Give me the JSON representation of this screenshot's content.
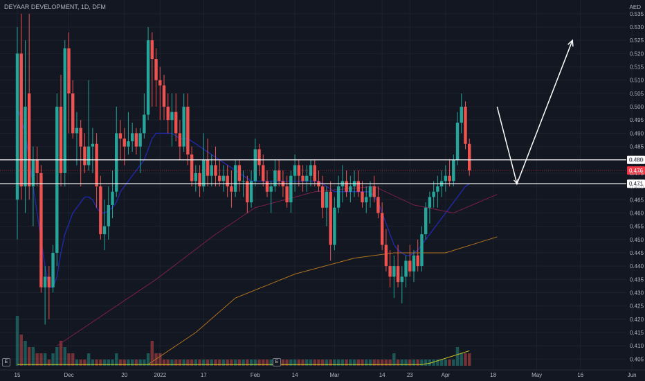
{
  "header": {
    "title": "DEYAAR DEVELOPMENT, 1D, DFM",
    "currency": "AED"
  },
  "colors": {
    "background": "#131722",
    "grid": "#1e222d",
    "up": "#26a69a",
    "down": "#ef5350",
    "ema_short": "#2028a8",
    "ema_mid": "#7b1f4a",
    "ema_long": "#b0741f",
    "volume_ma": "#c8c820",
    "level_line": "#ffffff",
    "price_label": "#f23645"
  },
  "badges": [
    "E",
    "E"
  ],
  "chart_data": {
    "type": "candlestick",
    "title": "DEYAAR DEVELOPMENT, 1D, DFM",
    "ylabel": "AED",
    "ylim": [
      0.403,
      0.536
    ],
    "yticks": [
      0.405,
      0.41,
      0.415,
      0.42,
      0.425,
      0.43,
      0.435,
      0.44,
      0.445,
      0.45,
      0.455,
      0.46,
      0.465,
      0.47,
      0.475,
      0.48,
      0.485,
      0.49,
      0.495,
      0.5,
      0.505,
      0.51,
      0.515,
      0.52,
      0.525,
      0.53,
      0.535
    ],
    "x_labels": [
      {
        "label": "15",
        "bar": 0
      },
      {
        "label": "Dec",
        "bar": 13
      },
      {
        "label": "20",
        "bar": 27
      },
      {
        "label": "2022",
        "bar": 36
      },
      {
        "label": "17",
        "bar": 47
      },
      {
        "label": "Feb",
        "bar": 60
      },
      {
        "label": "14",
        "bar": 70
      },
      {
        "label": "Mar",
        "bar": 80
      },
      {
        "label": "14",
        "bar": 92
      },
      {
        "label": "23",
        "bar": 99
      },
      {
        "label": "Apr",
        "bar": 108
      },
      {
        "label": "18",
        "bar": 120
      },
      {
        "label": "May",
        "bar": 131
      },
      {
        "label": "16",
        "bar": 142
      },
      {
        "label": "Jun",
        "bar": 155
      }
    ],
    "candles": [
      [
        0.465,
        0.53,
        0.45,
        0.52
      ],
      [
        0.52,
        0.535,
        0.465,
        0.47
      ],
      [
        0.47,
        0.525,
        0.46,
        0.5
      ],
      [
        0.505,
        0.535,
        0.465,
        0.47
      ],
      [
        0.47,
        0.485,
        0.455,
        0.48
      ],
      [
        0.48,
        0.485,
        0.47,
        0.475
      ],
      [
        0.475,
        0.478,
        0.43,
        0.432
      ],
      [
        0.432,
        0.44,
        0.418,
        0.436
      ],
      [
        0.436,
        0.44,
        0.42,
        0.432
      ],
      [
        0.432,
        0.448,
        0.43,
        0.445
      ],
      [
        0.445,
        0.505,
        0.44,
        0.5
      ],
      [
        0.5,
        0.512,
        0.47,
        0.475
      ],
      [
        0.475,
        0.525,
        0.47,
        0.522
      ],
      [
        0.522,
        0.528,
        0.49,
        0.505
      ],
      [
        0.505,
        0.51,
        0.488,
        0.49
      ],
      [
        0.49,
        0.498,
        0.478,
        0.492
      ],
      [
        0.492,
        0.495,
        0.47,
        0.485
      ],
      [
        0.485,
        0.49,
        0.475,
        0.478
      ],
      [
        0.478,
        0.51,
        0.476,
        0.485
      ],
      [
        0.485,
        0.492,
        0.475,
        0.486
      ],
      [
        0.486,
        0.49,
        0.462,
        0.47
      ],
      [
        0.47,
        0.474,
        0.45,
        0.452
      ],
      [
        0.452,
        0.465,
        0.446,
        0.455
      ],
      [
        0.455,
        0.47,
        0.45,
        0.463
      ],
      [
        0.463,
        0.476,
        0.458,
        0.468
      ],
      [
        0.468,
        0.5,
        0.466,
        0.49
      ],
      [
        0.49,
        0.495,
        0.48,
        0.488
      ],
      [
        0.488,
        0.492,
        0.478,
        0.485
      ],
      [
        0.485,
        0.498,
        0.482,
        0.487
      ],
      [
        0.487,
        0.494,
        0.483,
        0.49
      ],
      [
        0.49,
        0.492,
        0.482,
        0.485
      ],
      [
        0.485,
        0.492,
        0.475,
        0.49
      ],
      [
        0.49,
        0.505,
        0.488,
        0.497
      ],
      [
        0.497,
        0.53,
        0.495,
        0.525
      ],
      [
        0.525,
        0.528,
        0.5,
        0.518
      ],
      [
        0.518,
        0.522,
        0.5,
        0.51
      ],
      [
        0.51,
        0.515,
        0.495,
        0.508
      ],
      [
        0.508,
        0.512,
        0.495,
        0.5
      ],
      [
        0.5,
        0.505,
        0.49,
        0.495
      ],
      [
        0.495,
        0.505,
        0.485,
        0.498
      ],
      [
        0.498,
        0.505,
        0.487,
        0.49
      ],
      [
        0.49,
        0.495,
        0.48,
        0.485
      ],
      [
        0.485,
        0.505,
        0.483,
        0.5
      ],
      [
        0.5,
        0.505,
        0.478,
        0.482
      ],
      [
        0.482,
        0.485,
        0.47,
        0.472
      ],
      [
        0.472,
        0.478,
        0.468,
        0.475
      ],
      [
        0.475,
        0.478,
        0.466,
        0.47
      ],
      [
        0.47,
        0.49,
        0.468,
        0.48
      ],
      [
        0.48,
        0.488,
        0.47,
        0.474
      ],
      [
        0.474,
        0.482,
        0.47,
        0.478
      ],
      [
        0.478,
        0.485,
        0.47,
        0.474
      ],
      [
        0.474,
        0.48,
        0.47,
        0.472
      ],
      [
        0.472,
        0.478,
        0.468,
        0.474
      ],
      [
        0.474,
        0.478,
        0.466,
        0.47
      ],
      [
        0.47,
        0.476,
        0.462,
        0.468
      ],
      [
        0.468,
        0.48,
        0.466,
        0.478
      ],
      [
        0.478,
        0.48,
        0.468,
        0.472
      ],
      [
        0.472,
        0.476,
        0.466,
        0.472
      ],
      [
        0.472,
        0.474,
        0.46,
        0.464
      ],
      [
        0.464,
        0.476,
        0.462,
        0.472
      ],
      [
        0.472,
        0.488,
        0.47,
        0.484
      ],
      [
        0.484,
        0.486,
        0.474,
        0.478
      ],
      [
        0.478,
        0.482,
        0.47,
        0.472
      ],
      [
        0.472,
        0.476,
        0.466,
        0.468
      ],
      [
        0.468,
        0.472,
        0.46,
        0.47
      ],
      [
        0.47,
        0.48,
        0.468,
        0.476
      ],
      [
        0.476,
        0.48,
        0.47,
        0.472
      ],
      [
        0.472,
        0.476,
        0.466,
        0.47
      ],
      [
        0.47,
        0.474,
        0.462,
        0.464
      ],
      [
        0.464,
        0.476,
        0.46,
        0.474
      ],
      [
        0.474,
        0.482,
        0.468,
        0.478
      ],
      [
        0.478,
        0.48,
        0.47,
        0.474
      ],
      [
        0.474,
        0.478,
        0.468,
        0.472
      ],
      [
        0.472,
        0.478,
        0.468,
        0.474
      ],
      [
        0.474,
        0.48,
        0.47,
        0.478
      ],
      [
        0.478,
        0.48,
        0.47,
        0.472
      ],
      [
        0.472,
        0.476,
        0.468,
        0.47
      ],
      [
        0.47,
        0.474,
        0.458,
        0.462
      ],
      [
        0.462,
        0.47,
        0.455,
        0.468
      ],
      [
        0.468,
        0.472,
        0.442,
        0.448
      ],
      [
        0.448,
        0.466,
        0.446,
        0.462
      ],
      [
        0.462,
        0.474,
        0.46,
        0.47
      ],
      [
        0.47,
        0.478,
        0.464,
        0.472
      ],
      [
        0.472,
        0.476,
        0.466,
        0.468
      ],
      [
        0.468,
        0.474,
        0.464,
        0.47
      ],
      [
        0.47,
        0.476,
        0.466,
        0.472
      ],
      [
        0.472,
        0.476,
        0.466,
        0.468
      ],
      [
        0.468,
        0.472,
        0.462,
        0.464
      ],
      [
        0.464,
        0.47,
        0.46,
        0.466
      ],
      [
        0.466,
        0.472,
        0.462,
        0.47
      ],
      [
        0.47,
        0.474,
        0.464,
        0.466
      ],
      [
        0.466,
        0.47,
        0.458,
        0.46
      ],
      [
        0.46,
        0.464,
        0.446,
        0.448
      ],
      [
        0.448,
        0.454,
        0.438,
        0.44
      ],
      [
        0.44,
        0.446,
        0.432,
        0.436
      ],
      [
        0.436,
        0.444,
        0.428,
        0.44
      ],
      [
        0.44,
        0.448,
        0.432,
        0.434
      ],
      [
        0.434,
        0.44,
        0.426,
        0.436
      ],
      [
        0.436,
        0.444,
        0.432,
        0.442
      ],
      [
        0.442,
        0.448,
        0.436,
        0.438
      ],
      [
        0.438,
        0.446,
        0.434,
        0.444
      ],
      [
        0.444,
        0.45,
        0.438,
        0.44
      ],
      [
        0.44,
        0.455,
        0.438,
        0.452
      ],
      [
        0.452,
        0.464,
        0.45,
        0.462
      ],
      [
        0.462,
        0.468,
        0.456,
        0.466
      ],
      [
        0.466,
        0.472,
        0.462,
        0.468
      ],
      [
        0.468,
        0.474,
        0.462,
        0.47
      ],
      [
        0.47,
        0.476,
        0.466,
        0.472
      ],
      [
        0.472,
        0.478,
        0.468,
        0.474
      ],
      [
        0.474,
        0.48,
        0.47,
        0.472
      ],
      [
        0.472,
        0.482,
        0.47,
        0.48
      ],
      [
        0.48,
        0.498,
        0.478,
        0.494
      ],
      [
        0.494,
        0.505,
        0.49,
        0.5
      ],
      [
        0.5,
        0.502,
        0.484,
        0.486
      ],
      [
        0.486,
        0.488,
        0.474,
        0.476
      ]
    ],
    "volume": [
      0.8,
      0.5,
      0.4,
      0.3,
      0.3,
      0.2,
      0.2,
      0.2,
      0.1,
      0.2,
      0.3,
      0.4,
      0.3,
      0.2,
      0.2,
      0.1,
      0.1,
      0.1,
      0.2,
      0.1,
      0.1,
      0.1,
      0.1,
      0.1,
      0.1,
      0.2,
      0.1,
      0.1,
      0.1,
      0.1,
      0.1,
      0.1,
      0.1,
      0.2,
      0.4,
      0.2,
      0.2,
      0.1,
      0.1,
      0.1,
      0.1,
      0.1,
      0.1,
      0.1,
      0.1,
      0.1,
      0.1,
      0.1,
      0.1,
      0.1,
      0.1,
      0.1,
      0.1,
      0.1,
      0.1,
      0.1,
      0.1,
      0.1,
      0.1,
      0.1,
      0.1,
      0.1,
      0.1,
      0.1,
      0.1,
      0.1,
      0.1,
      0.1,
      0.1,
      0.1,
      0.1,
      0.1,
      0.1,
      0.1,
      0.1,
      0.1,
      0.1,
      0.1,
      0.1,
      0.1,
      0.1,
      0.1,
      0.1,
      0.1,
      0.1,
      0.1,
      0.1,
      0.1,
      0.1,
      0.1,
      0.1,
      0.1,
      0.1,
      0.1,
      0.1,
      0.2,
      0.1,
      0.1,
      0.1,
      0.1,
      0.1,
      0.1,
      0.1,
      0.1,
      0.1,
      0.1,
      0.1,
      0.1,
      0.1,
      0.1,
      0.1,
      0.3,
      0.2,
      0.2,
      0.2
    ],
    "ema_short": [
      0.5,
      0.495,
      0.49,
      0.48,
      0.47,
      0.46,
      0.45,
      0.44,
      0.432,
      0.432,
      0.436,
      0.445,
      0.452,
      0.456,
      0.46,
      0.462,
      0.464,
      0.466,
      0.466,
      0.465,
      0.462,
      0.46,
      0.46,
      0.461,
      0.462,
      0.464,
      0.468,
      0.47,
      0.472,
      0.474,
      0.476,
      0.478,
      0.48,
      0.484,
      0.488,
      0.49,
      0.49,
      0.49,
      0.49,
      0.49,
      0.489,
      0.488,
      0.488,
      0.488,
      0.487,
      0.486,
      0.485,
      0.484,
      0.483,
      0.482,
      0.481,
      0.48,
      0.479,
      0.478,
      0.477,
      0.476,
      0.475,
      0.474,
      0.473,
      0.472,
      0.472,
      0.472,
      0.472,
      0.472,
      0.472,
      0.472,
      0.472,
      0.472,
      0.472,
      0.472,
      0.472,
      0.472,
      0.472,
      0.472,
      0.472,
      0.472,
      0.472,
      0.471,
      0.47,
      0.469,
      0.468,
      0.468,
      0.468,
      0.468,
      0.468,
      0.468,
      0.468,
      0.468,
      0.468,
      0.468,
      0.466,
      0.464,
      0.46,
      0.456,
      0.452,
      0.448,
      0.446,
      0.445,
      0.444,
      0.444,
      0.445,
      0.446,
      0.448,
      0.45,
      0.452,
      0.454,
      0.456,
      0.458,
      0.46,
      0.462,
      0.464,
      0.466,
      0.468,
      0.47,
      0.471
    ],
    "volume_ma": [
      0.02,
      0.02,
      0.02,
      0.02,
      0.02,
      0.02,
      0.02,
      0.02,
      0.02,
      0.02,
      0.02,
      0.02,
      0.02,
      0.02,
      0.02,
      0.02,
      0.02,
      0.02,
      0.02,
      0.02,
      0.02,
      0.02,
      0.02,
      0.02,
      0.02,
      0.02,
      0.02,
      0.02,
      0.02,
      0.02,
      0.02,
      0.02,
      0.02,
      0.02,
      0.02,
      0.02,
      0.02,
      0.02,
      0.02,
      0.02,
      0.02,
      0.02,
      0.02,
      0.02,
      0.02,
      0.02,
      0.02,
      0.02,
      0.02,
      0.02,
      0.02,
      0.02,
      0.02,
      0.02,
      0.02,
      0.02,
      0.02,
      0.02,
      0.02,
      0.02,
      0.02,
      0.02,
      0.02,
      0.02,
      0.02,
      0.02,
      0.02,
      0.02,
      0.02,
      0.02,
      0.02,
      0.02,
      0.02,
      0.02,
      0.02,
      0.02,
      0.02,
      0.02,
      0.02,
      0.02,
      0.02,
      0.02,
      0.02,
      0.02,
      0.02,
      0.02,
      0.02,
      0.02,
      0.02,
      0.02,
      0.02,
      0.02,
      0.02,
      0.02,
      0.02,
      0.02,
      0.02,
      0.02,
      0.02,
      0.02,
      0.02,
      0.02,
      0.02,
      0.03,
      0.04,
      0.06,
      0.08,
      0.1,
      0.12,
      0.14,
      0.16,
      0.18,
      0.2,
      0.22,
      0.24
    ],
    "ema_mid_points": [
      [
        10,
        0.41
      ],
      [
        20,
        0.42
      ],
      [
        35,
        0.435
      ],
      [
        50,
        0.452
      ],
      [
        60,
        0.462
      ],
      [
        75,
        0.468
      ],
      [
        90,
        0.47
      ],
      [
        100,
        0.463
      ],
      [
        110,
        0.46
      ],
      [
        121,
        0.467
      ]
    ],
    "ema_long_points": [
      [
        33,
        0.403
      ],
      [
        45,
        0.415
      ],
      [
        55,
        0.428
      ],
      [
        70,
        0.437
      ],
      [
        85,
        0.443
      ],
      [
        95,
        0.445
      ],
      [
        108,
        0.445
      ],
      [
        121,
        0.451
      ]
    ],
    "levels": [
      {
        "value": 0.48,
        "label": "0.480"
      },
      {
        "value": 0.471,
        "label": "0.471"
      }
    ],
    "last_price": {
      "value": 0.476,
      "label": "0.476"
    },
    "projection_arrow": [
      [
        121,
        0.5
      ],
      [
        126,
        0.471
      ],
      [
        140,
        0.525
      ]
    ],
    "axis_right_ticks": [
      "0.405",
      "0.410",
      "0.415",
      "0.420",
      "0.425",
      "0.430",
      "0.435",
      "0.440",
      "0.445",
      "0.450",
      "0.455",
      "0.460",
      "0.465",
      "0.470",
      "0.475",
      "0.480",
      "0.485",
      "0.490",
      "0.495",
      "0.500",
      "0.505",
      "0.510",
      "0.515",
      "0.520",
      "0.525",
      "0.530",
      "0.535"
    ],
    "grid": true
  }
}
